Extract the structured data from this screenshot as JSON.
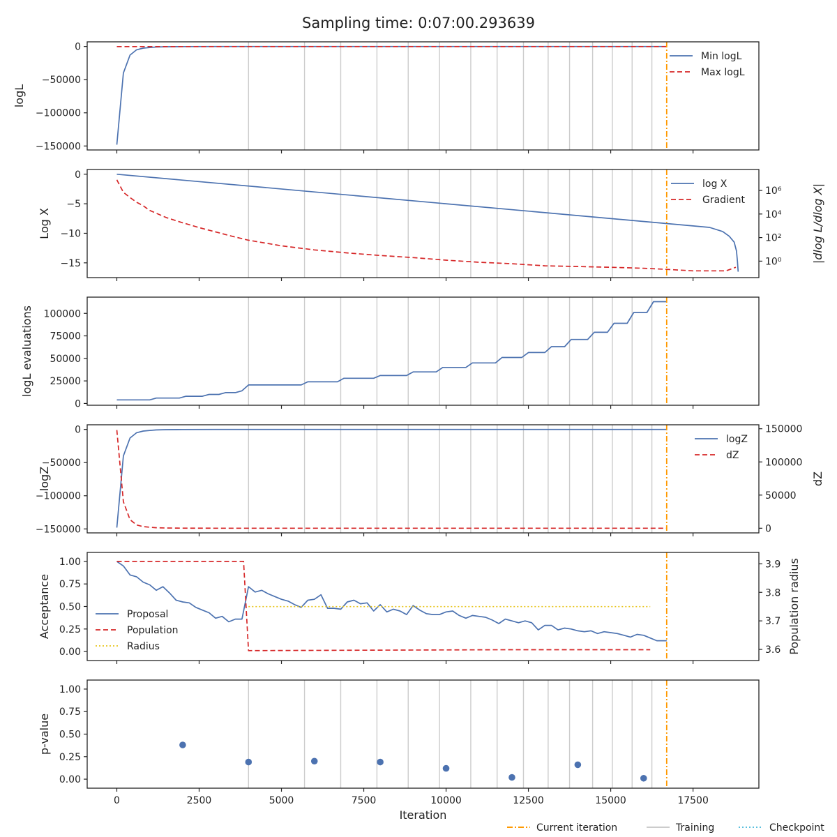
{
  "title": "Sampling time: 0:07:00.293639",
  "colors": {
    "blue": "#4c72b0",
    "red": "#d62728",
    "orange": "#ff9900",
    "gold": "#e8c41a",
    "training": "#cccccc",
    "checkpoint": "#5bc0de"
  },
  "figure_legend": {
    "current": "Current iteration",
    "training": "Training",
    "checkpoint": "Checkpoint"
  },
  "chart_data": [
    {
      "type": "line",
      "ylabel": "logL",
      "xlim": [
        -900,
        19500
      ],
      "ylim": [
        -156000,
        7000
      ],
      "yticks": [
        0,
        -50000,
        -100000,
        -150000
      ],
      "ytick_labels": [
        "0",
        "−50000",
        "−100000",
        "−150000"
      ],
      "current_iteration": 16700,
      "training_lines": [
        4000,
        5700,
        6800,
        7900,
        8850,
        9800,
        10750,
        11550,
        12350,
        13100,
        13750,
        14450,
        15050,
        15650,
        16250
      ],
      "legend": [
        "Min logL",
        "Max logL"
      ],
      "series": [
        {
          "name": "Min logL",
          "x": [
            0,
            200,
            400,
            600,
            800,
            1000,
            1200,
            1500,
            2000,
            3000,
            5000,
            8000,
            12000,
            16700
          ],
          "y": [
            -148000,
            -40000,
            -13000,
            -5000,
            -2500,
            -1500,
            -800,
            -400,
            -200,
            -80,
            -30,
            -15,
            -8,
            -3
          ]
        },
        {
          "name": "Max logL",
          "x": [
            0,
            16700
          ],
          "y": [
            -200,
            -100
          ]
        }
      ]
    },
    {
      "type": "line",
      "ylabel": "Log X",
      "y2label": "|dlog L/dlog X|",
      "xlim": [
        -900,
        19500
      ],
      "ylim": [
        -17.5,
        0.8
      ],
      "yticks": [
        0,
        -5,
        -10,
        -15
      ],
      "ytick_labels": [
        "0",
        "−5",
        "−10",
        "−15"
      ],
      "y2_log": true,
      "y2lim": [
        0.04,
        60000000
      ],
      "y2ticks": [
        1,
        100,
        10000,
        1000000
      ],
      "y2tick_labels": [
        "10⁰",
        "10²",
        "10⁴",
        "10⁶"
      ],
      "current_iteration": 16700,
      "training_lines": [
        4000,
        5700,
        6800,
        7900,
        8850,
        9800,
        10750,
        11550,
        12350,
        13100,
        13750,
        14450,
        15050,
        15650,
        16250
      ],
      "legend": [
        "log X",
        "Gradient"
      ],
      "series": [
        {
          "name": "log X",
          "x": [
            0,
            16700,
            17500,
            18000,
            18400,
            18600,
            18750,
            18820,
            18850,
            18870
          ],
          "y": [
            0,
            -8.35,
            -8.75,
            -9.0,
            -9.7,
            -10.5,
            -11.5,
            -13.0,
            -14.8,
            -16.5
          ]
        },
        {
          "name": "Gradient",
          "x": [
            0,
            200,
            400,
            600,
            800,
            1000,
            1500,
            2000,
            2500,
            3000,
            3500,
            4000,
            5000,
            6000,
            7000,
            8000,
            9000,
            10000,
            11000,
            12000,
            13000,
            14000,
            15000,
            16000,
            16700,
            17500,
            18000,
            18500,
            18800
          ],
          "y": [
            8000000,
            700000,
            250000,
            100000,
            50000,
            20000,
            5000,
            1800,
            700,
            300,
            130,
            60,
            20,
            9,
            5,
            3,
            2,
            1.2,
            0.8,
            0.6,
            0.4,
            0.35,
            0.3,
            0.25,
            0.2,
            0.15,
            0.15,
            0.15,
            0.3
          ]
        }
      ]
    },
    {
      "type": "line",
      "ylabel": "logL evaluations",
      "xlim": [
        -900,
        19500
      ],
      "ylim": [
        -2000,
        118000
      ],
      "yticks": [
        0,
        25000,
        50000,
        75000,
        100000
      ],
      "ytick_labels": [
        "0",
        "25000",
        "50000",
        "75000",
        "100000"
      ],
      "current_iteration": 16700,
      "training_lines": [
        4000,
        5700,
        6800,
        7900,
        8850,
        9800,
        10750,
        11550,
        12350,
        13100,
        13750,
        14450,
        15050,
        15650,
        16250
      ],
      "legend": [],
      "series": [
        {
          "name": "",
          "x": [
            0,
            1000,
            1200,
            1900,
            2100,
            2600,
            2800,
            3100,
            3300,
            3600,
            3800,
            4000,
            5600,
            5800,
            6700,
            6900,
            7800,
            8000,
            8800,
            9000,
            9700,
            9900,
            10600,
            10800,
            11500,
            11700,
            12300,
            12500,
            13000,
            13200,
            13600,
            13800,
            14300,
            14500,
            14900,
            15100,
            15500,
            15700,
            16100,
            16300,
            16700
          ],
          "y": [
            4000,
            4000,
            6000,
            6000,
            8000,
            8000,
            10000,
            10000,
            12000,
            12000,
            14000,
            20500,
            20500,
            24000,
            24000,
            28000,
            28000,
            31000,
            31000,
            35000,
            35000,
            40000,
            40000,
            45000,
            45000,
            51000,
            51000,
            56500,
            56500,
            63000,
            63000,
            71000,
            71000,
            79000,
            79000,
            89000,
            89000,
            101000,
            101000,
            113000,
            113000
          ]
        }
      ]
    },
    {
      "type": "line",
      "ylabel": "logZ",
      "y2label": "dZ",
      "xlim": [
        -900,
        19500
      ],
      "ylim": [
        -156000,
        7000
      ],
      "yticks": [
        0,
        -50000,
        -100000,
        -150000
      ],
      "ytick_labels": [
        "0",
        "−50000",
        "−100000",
        "−150000"
      ],
      "y2lim": [
        -7000,
        156000
      ],
      "y2ticks": [
        0,
        50000,
        100000,
        150000
      ],
      "y2tick_labels": [
        "0",
        "50000",
        "100000",
        "150000"
      ],
      "current_iteration": 16700,
      "training_lines": [
        4000,
        5700,
        6800,
        7900,
        8850,
        9800,
        10750,
        11550,
        12350,
        13100,
        13750,
        14450,
        15050,
        15650,
        16250
      ],
      "legend": [
        "logZ",
        "dZ"
      ],
      "series": [
        {
          "name": "logZ",
          "x": [
            0,
            200,
            400,
            600,
            800,
            1000,
            1200,
            1500,
            2000,
            3000,
            5000,
            8000,
            16700
          ],
          "y": [
            -148000,
            -40000,
            -13000,
            -5000,
            -2500,
            -1500,
            -800,
            -400,
            -200,
            -80,
            -30,
            -15,
            -3
          ]
        },
        {
          "name": "dZ",
          "x": [
            0,
            200,
            400,
            600,
            800,
            1000,
            1200,
            1500,
            2000,
            3000,
            5000,
            8000,
            16700
          ],
          "y": [
            148000,
            40000,
            13000,
            5000,
            2500,
            1500,
            800,
            400,
            200,
            80,
            30,
            15,
            3
          ]
        }
      ]
    },
    {
      "type": "line",
      "ylabel": "Acceptance",
      "y2label": "Population radius",
      "xlim": [
        -900,
        19500
      ],
      "ylim": [
        -0.1,
        1.1
      ],
      "yticks": [
        0,
        0.25,
        0.5,
        0.75,
        1.0
      ],
      "ytick_labels": [
        "0.00",
        "0.25",
        "0.50",
        "0.75",
        "1.00"
      ],
      "y2lim": [
        3.561,
        3.94
      ],
      "y2ticks": [
        3.6,
        3.7,
        3.8,
        3.9
      ],
      "y2tick_labels": [
        "3.6",
        "3.7",
        "3.8",
        "3.9"
      ],
      "current_iteration": 16700,
      "training_lines": [],
      "legend": [
        "Proposal",
        "Population",
        "Radius"
      ],
      "series": [
        {
          "name": "Proposal",
          "x": [
            0,
            200,
            400,
            600,
            800,
            1000,
            1200,
            1400,
            1600,
            1800,
            2000,
            2200,
            2400,
            2600,
            2800,
            3000,
            3200,
            3400,
            3600,
            3800,
            4000,
            4200,
            4400,
            4600,
            4800,
            5000,
            5200,
            5400,
            5600,
            5800,
            6000,
            6200,
            6400,
            6600,
            6800,
            7000,
            7200,
            7400,
            7600,
            7800,
            8000,
            8200,
            8400,
            8600,
            8800,
            9000,
            9200,
            9400,
            9600,
            9800,
            10000,
            10200,
            10400,
            10600,
            10800,
            11000,
            11200,
            11400,
            11600,
            11800,
            12000,
            12200,
            12400,
            12600,
            12800,
            13000,
            13200,
            13400,
            13600,
            13800,
            14000,
            14200,
            14400,
            14600,
            14800,
            15000,
            15200,
            15400,
            15600,
            15800,
            16000,
            16200,
            16400,
            16700
          ],
          "y": [
            1.0,
            0.95,
            0.85,
            0.83,
            0.77,
            0.74,
            0.68,
            0.72,
            0.65,
            0.57,
            0.55,
            0.54,
            0.49,
            0.46,
            0.43,
            0.37,
            0.39,
            0.33,
            0.36,
            0.36,
            0.72,
            0.66,
            0.68,
            0.64,
            0.61,
            0.58,
            0.56,
            0.52,
            0.49,
            0.57,
            0.58,
            0.63,
            0.48,
            0.48,
            0.47,
            0.55,
            0.57,
            0.53,
            0.54,
            0.45,
            0.52,
            0.44,
            0.47,
            0.45,
            0.41,
            0.51,
            0.46,
            0.42,
            0.41,
            0.41,
            0.44,
            0.45,
            0.4,
            0.37,
            0.4,
            0.39,
            0.38,
            0.35,
            0.31,
            0.36,
            0.34,
            0.32,
            0.34,
            0.32,
            0.24,
            0.29,
            0.29,
            0.24,
            0.26,
            0.25,
            0.23,
            0.22,
            0.23,
            0.2,
            0.22,
            0.21,
            0.2,
            0.18,
            0.16,
            0.19,
            0.18,
            0.15,
            0.12,
            0.12
          ]
        },
        {
          "name": "Population",
          "x": [
            0,
            3850,
            4000,
            8000,
            12000,
            16200
          ],
          "y": [
            1.0,
            1.0,
            0.01,
            0.015,
            0.02,
            0.02
          ]
        },
        {
          "name": "Radius",
          "x": [
            4000,
            16200
          ],
          "y": [
            3.75,
            3.75
          ]
        }
      ]
    },
    {
      "type": "scatter",
      "ylabel": "p-value",
      "xlabel": "Iteration",
      "xlim": [
        -900,
        19500
      ],
      "ylim": [
        -0.1,
        1.1
      ],
      "yticks": [
        0,
        0.25,
        0.5,
        0.75,
        1.0
      ],
      "ytick_labels": [
        "0.00",
        "0.25",
        "0.50",
        "0.75",
        "1.00"
      ],
      "xticks": [
        0,
        2500,
        5000,
        7500,
        10000,
        12500,
        15000,
        17500
      ],
      "xtick_labels": [
        "0",
        "2500",
        "5000",
        "7500",
        "10000",
        "12500",
        "15000",
        "17500"
      ],
      "current_iteration": 16700,
      "training_lines": [
        4000,
        5700,
        6800,
        7900,
        8850,
        9800,
        10750,
        11550,
        12350,
        13100,
        13750,
        14450,
        15050,
        15650,
        16250
      ],
      "legend": [],
      "series": [
        {
          "name": "",
          "x": [
            2000,
            4000,
            6000,
            8000,
            10000,
            12000,
            14000,
            16000
          ],
          "y": [
            0.38,
            0.19,
            0.2,
            0.19,
            0.12,
            0.02,
            0.16,
            0.01
          ]
        }
      ]
    }
  ]
}
